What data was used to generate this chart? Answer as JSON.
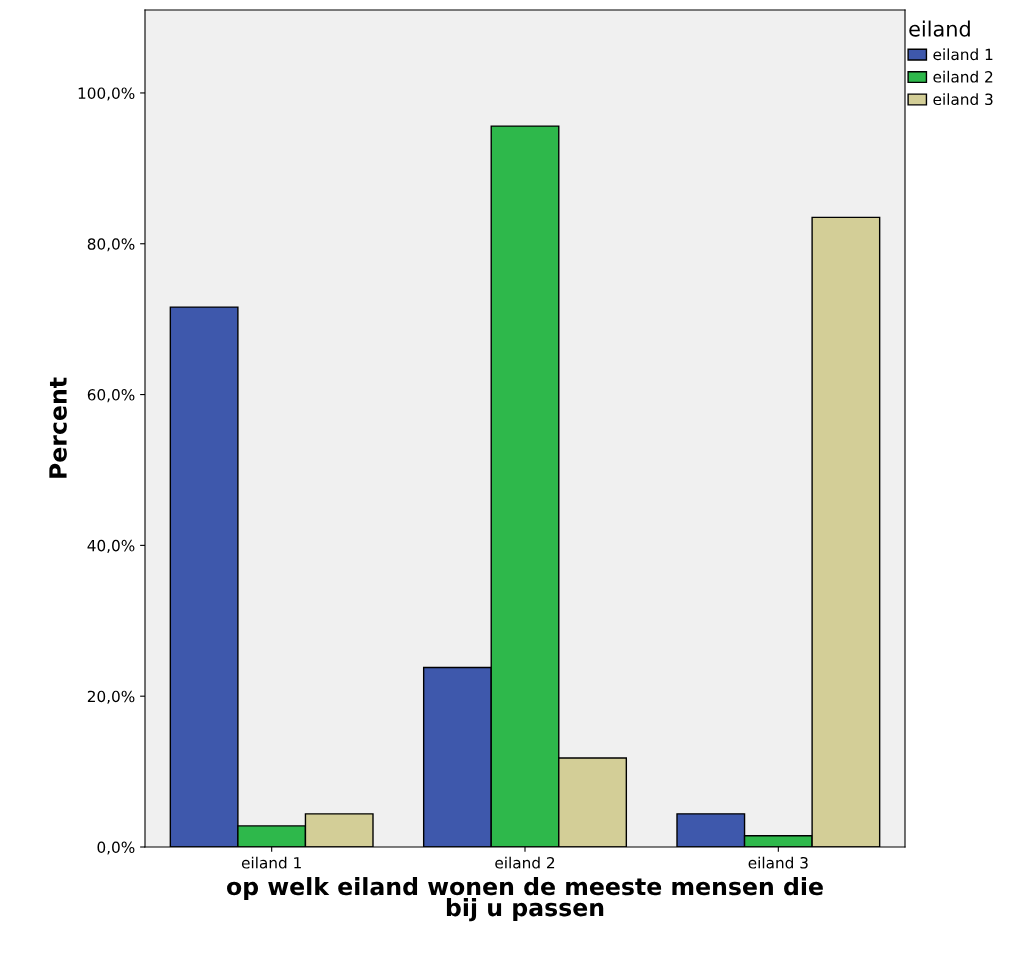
{
  "chart_data": {
    "type": "bar",
    "xlabel": "op welk eiland wonen de meeste mensen die\nbij u passen",
    "ylabel": "Percent",
    "legend_title": "eiland",
    "legend": "top right",
    "categories": [
      "eiland 1",
      "eiland 2",
      "eiland 3"
    ],
    "series": [
      {
        "name": "eiland 1",
        "color": "#3e58ac",
        "values": [
          71.6,
          23.8,
          4.4
        ]
      },
      {
        "name": "eiland 2",
        "color": "#2eb84b",
        "values": [
          2.8,
          95.6,
          1.5
        ]
      },
      {
        "name": "eiland 3",
        "color": "#d3ce97",
        "values": [
          4.4,
          11.8,
          83.5
        ]
      }
    ],
    "ylim": [
      0,
      111
    ],
    "yticks": [
      {
        "value": 0,
        "label": "0,0%"
      },
      {
        "value": 20,
        "label": "20,0%"
      },
      {
        "value": 40,
        "label": "40,0%"
      },
      {
        "value": 60,
        "label": "60,0%"
      },
      {
        "value": 80,
        "label": "80,0%"
      },
      {
        "value": 100,
        "label": "100,0%"
      }
    ],
    "grid": false
  }
}
